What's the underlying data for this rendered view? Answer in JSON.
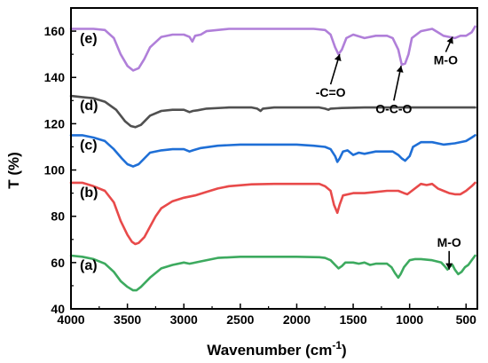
{
  "chart_data": {
    "type": "line",
    "xlabel_main": "Wavenumber (cm",
    "xlabel_sup": "-1",
    "xlabel_end": ")",
    "ylabel": "T (%)",
    "xlim": [
      4000,
      400
    ],
    "ylim": [
      40,
      170
    ],
    "x_ticks": [
      "4000",
      "3500",
      "3000",
      "2500",
      "2000",
      "1500",
      "1000",
      "500"
    ],
    "y_ticks": [
      "40",
      "60",
      "80",
      "100",
      "120",
      "140",
      "160"
    ],
    "grid": false,
    "series": [
      {
        "name": "(e)",
        "color": "#b07fd9",
        "points": [
          [
            4000,
            161
          ],
          [
            3800,
            161
          ],
          [
            3700,
            160.5
          ],
          [
            3620,
            157
          ],
          [
            3560,
            150
          ],
          [
            3500,
            145
          ],
          [
            3450,
            143
          ],
          [
            3400,
            144
          ],
          [
            3350,
            148
          ],
          [
            3300,
            153
          ],
          [
            3200,
            157.5
          ],
          [
            3100,
            158.5
          ],
          [
            3000,
            158.5
          ],
          [
            2950,
            157.5
          ],
          [
            2925,
            155.5
          ],
          [
            2900,
            158
          ],
          [
            2850,
            158.5
          ],
          [
            2800,
            160
          ],
          [
            2600,
            161
          ],
          [
            2400,
            161
          ],
          [
            2200,
            161
          ],
          [
            2000,
            161
          ],
          [
            1850,
            161
          ],
          [
            1750,
            160.5
          ],
          [
            1700,
            158.5
          ],
          [
            1660,
            153
          ],
          [
            1630,
            150
          ],
          [
            1600,
            152
          ],
          [
            1560,
            157
          ],
          [
            1500,
            158.5
          ],
          [
            1400,
            157
          ],
          [
            1300,
            158
          ],
          [
            1200,
            158
          ],
          [
            1150,
            157
          ],
          [
            1100,
            152
          ],
          [
            1070,
            145.5
          ],
          [
            1040,
            146
          ],
          [
            1010,
            150
          ],
          [
            980,
            157
          ],
          [
            900,
            160
          ],
          [
            800,
            161
          ],
          [
            750,
            159.5
          ],
          [
            700,
            158
          ],
          [
            650,
            157.5
          ],
          [
            600,
            157
          ],
          [
            550,
            158
          ],
          [
            500,
            158
          ],
          [
            450,
            159.5
          ],
          [
            420,
            162
          ]
        ]
      },
      {
        "name": "(d)",
        "color": "#505050",
        "points": [
          [
            4000,
            132
          ],
          [
            3900,
            131.5
          ],
          [
            3800,
            131
          ],
          [
            3700,
            129.5
          ],
          [
            3600,
            126
          ],
          [
            3520,
            121
          ],
          [
            3470,
            119
          ],
          [
            3430,
            118.5
          ],
          [
            3380,
            119.5
          ],
          [
            3300,
            123.5
          ],
          [
            3200,
            125.5
          ],
          [
            3100,
            126
          ],
          [
            3000,
            126
          ],
          [
            2950,
            125
          ],
          [
            2920,
            125.5
          ],
          [
            2880,
            125.8
          ],
          [
            2800,
            126.5
          ],
          [
            2600,
            127
          ],
          [
            2400,
            127
          ],
          [
            2350,
            126.5
          ],
          [
            2320,
            125.5
          ],
          [
            2300,
            126.5
          ],
          [
            2200,
            127
          ],
          [
            2000,
            127
          ],
          [
            1800,
            127
          ],
          [
            1750,
            126.5
          ],
          [
            1720,
            126
          ],
          [
            1700,
            126.5
          ],
          [
            1600,
            126.8
          ],
          [
            1400,
            127
          ],
          [
            1200,
            127
          ],
          [
            1000,
            127
          ],
          [
            800,
            127
          ],
          [
            600,
            127
          ],
          [
            420,
            127
          ]
        ]
      },
      {
        "name": "(c)",
        "color": "#1f6fd6",
        "points": [
          [
            4000,
            115
          ],
          [
            3900,
            115
          ],
          [
            3800,
            114
          ],
          [
            3700,
            112.5
          ],
          [
            3620,
            109
          ],
          [
            3550,
            105
          ],
          [
            3500,
            102.5
          ],
          [
            3450,
            101.5
          ],
          [
            3400,
            102.5
          ],
          [
            3350,
            105
          ],
          [
            3300,
            107.5
          ],
          [
            3200,
            108.5
          ],
          [
            3100,
            109
          ],
          [
            3000,
            109
          ],
          [
            2950,
            108
          ],
          [
            2920,
            108.5
          ],
          [
            2850,
            109.5
          ],
          [
            2700,
            110.5
          ],
          [
            2500,
            111
          ],
          [
            2200,
            111
          ],
          [
            2000,
            111
          ],
          [
            1850,
            110.5
          ],
          [
            1750,
            110
          ],
          [
            1700,
            109
          ],
          [
            1660,
            106
          ],
          [
            1640,
            103.5
          ],
          [
            1620,
            105
          ],
          [
            1590,
            108
          ],
          [
            1550,
            108.5
          ],
          [
            1500,
            106.5
          ],
          [
            1450,
            107.5
          ],
          [
            1400,
            107
          ],
          [
            1300,
            108
          ],
          [
            1200,
            108
          ],
          [
            1150,
            108
          ],
          [
            1100,
            106.5
          ],
          [
            1070,
            105
          ],
          [
            1040,
            104
          ],
          [
            1000,
            106
          ],
          [
            970,
            110
          ],
          [
            900,
            112
          ],
          [
            800,
            112
          ],
          [
            700,
            111
          ],
          [
            600,
            111.5
          ],
          [
            500,
            112.5
          ],
          [
            450,
            114
          ],
          [
            420,
            115
          ]
        ]
      },
      {
        "name": "(b)",
        "color": "#e84a4a",
        "points": [
          [
            4000,
            94.5
          ],
          [
            3900,
            94.5
          ],
          [
            3800,
            93
          ],
          [
            3700,
            91
          ],
          [
            3620,
            86
          ],
          [
            3560,
            78
          ],
          [
            3500,
            72
          ],
          [
            3460,
            69
          ],
          [
            3430,
            68
          ],
          [
            3400,
            68.5
          ],
          [
            3350,
            71
          ],
          [
            3300,
            75.5
          ],
          [
            3250,
            80
          ],
          [
            3200,
            83.5
          ],
          [
            3100,
            86.5
          ],
          [
            3000,
            88
          ],
          [
            2900,
            89
          ],
          [
            2800,
            90.5
          ],
          [
            2700,
            92
          ],
          [
            2600,
            93
          ],
          [
            2400,
            93.8
          ],
          [
            2200,
            94
          ],
          [
            2000,
            94
          ],
          [
            1800,
            94
          ],
          [
            1750,
            93
          ],
          [
            1700,
            91
          ],
          [
            1670,
            85
          ],
          [
            1640,
            81.5
          ],
          [
            1620,
            85
          ],
          [
            1590,
            89
          ],
          [
            1500,
            90
          ],
          [
            1400,
            90
          ],
          [
            1300,
            90.5
          ],
          [
            1200,
            91
          ],
          [
            1100,
            91
          ],
          [
            1050,
            90
          ],
          [
            1020,
            89.5
          ],
          [
            980,
            91
          ],
          [
            900,
            94
          ],
          [
            850,
            93.5
          ],
          [
            800,
            94
          ],
          [
            750,
            92
          ],
          [
            700,
            91
          ],
          [
            650,
            90
          ],
          [
            600,
            89.5
          ],
          [
            550,
            89.5
          ],
          [
            500,
            91
          ],
          [
            450,
            93
          ],
          [
            420,
            94.5
          ]
        ]
      },
      {
        "name": "(a)",
        "color": "#3daa5f",
        "points": [
          [
            4000,
            63
          ],
          [
            3900,
            62.5
          ],
          [
            3800,
            61.5
          ],
          [
            3700,
            59.5
          ],
          [
            3620,
            56
          ],
          [
            3560,
            52
          ],
          [
            3500,
            49.5
          ],
          [
            3450,
            48
          ],
          [
            3420,
            48
          ],
          [
            3380,
            49.5
          ],
          [
            3300,
            53.5
          ],
          [
            3200,
            57.5
          ],
          [
            3100,
            59
          ],
          [
            3000,
            60
          ],
          [
            2950,
            59.5
          ],
          [
            2920,
            59.8
          ],
          [
            2850,
            60.5
          ],
          [
            2700,
            62
          ],
          [
            2500,
            62.5
          ],
          [
            2300,
            62.5
          ],
          [
            2000,
            62.5
          ],
          [
            1800,
            62.3
          ],
          [
            1750,
            62
          ],
          [
            1700,
            61
          ],
          [
            1660,
            59
          ],
          [
            1630,
            57.5
          ],
          [
            1600,
            58.5
          ],
          [
            1570,
            60
          ],
          [
            1500,
            60
          ],
          [
            1450,
            59.5
          ],
          [
            1400,
            60
          ],
          [
            1350,
            59
          ],
          [
            1300,
            59.5
          ],
          [
            1200,
            59.5
          ],
          [
            1160,
            58
          ],
          [
            1130,
            55.5
          ],
          [
            1100,
            53.5
          ],
          [
            1080,
            55
          ],
          [
            1050,
            58
          ],
          [
            1000,
            61
          ],
          [
            950,
            61.5
          ],
          [
            900,
            61.5
          ],
          [
            800,
            61
          ],
          [
            720,
            60
          ],
          [
            690,
            58.5
          ],
          [
            665,
            57
          ],
          [
            640,
            58.5
          ],
          [
            620,
            59
          ],
          [
            600,
            57
          ],
          [
            570,
            55
          ],
          [
            540,
            56
          ],
          [
            510,
            58
          ],
          [
            480,
            59
          ],
          [
            450,
            61
          ],
          [
            420,
            63
          ]
        ]
      }
    ],
    "annotations": [
      {
        "text": "-C=O",
        "tip": [
          1620,
          150
        ],
        "tail": [
          1700,
          137
        ]
      },
      {
        "text": "O-C-O",
        "tip": [
          1075,
          145
        ],
        "tail": [
          1140,
          130
        ]
      },
      {
        "text": "M-O",
        "tip": [
          620,
          157.5
        ],
        "tail": [
          680,
          151
        ]
      },
      {
        "text": "M-O",
        "tip": [
          650,
          57
        ],
        "tail": [
          650,
          65
        ]
      }
    ]
  }
}
